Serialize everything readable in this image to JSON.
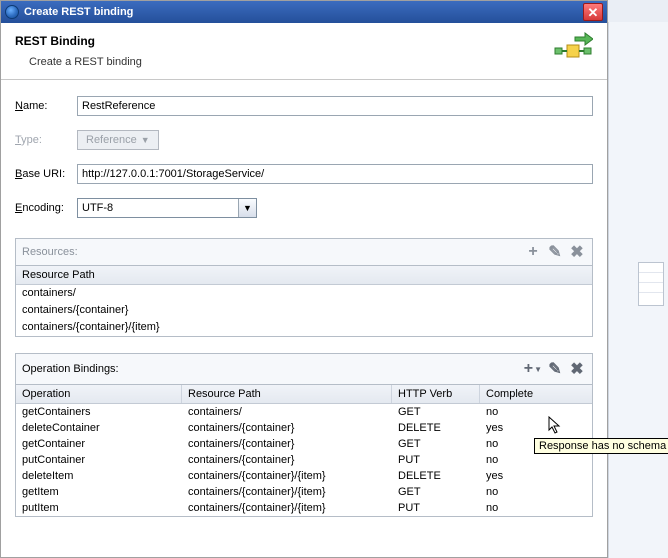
{
  "window": {
    "title": "Create REST binding"
  },
  "header": {
    "title": "REST Binding",
    "subtitle": "Create a REST binding"
  },
  "form": {
    "name": "RestReference",
    "type": "Reference",
    "base_uri": "http://127.0.0.1:7001/StorageService/",
    "encoding": "UTF-8"
  },
  "resources": {
    "label": "Resources:",
    "column": "Resource Path",
    "rows": [
      "containers/",
      "containers/{container}",
      "containers/{container}/{item}"
    ]
  },
  "operations": {
    "label": "Operation Bindings:",
    "columns": [
      "Operation",
      "Resource Path",
      "HTTP Verb",
      "Complete"
    ],
    "rows": [
      {
        "op": "getContainers",
        "rp": "containers/",
        "verb": "GET",
        "complete": "no"
      },
      {
        "op": "deleteContainer",
        "rp": "containers/{container}",
        "verb": "DELETE",
        "complete": "yes"
      },
      {
        "op": "getContainer",
        "rp": "containers/{container}",
        "verb": "GET",
        "complete": "no"
      },
      {
        "op": "putContainer",
        "rp": "containers/{container}",
        "verb": "PUT",
        "complete": "no"
      },
      {
        "op": "deleteItem",
        "rp": "containers/{container}/{item}",
        "verb": "DELETE",
        "complete": "yes"
      },
      {
        "op": "getItem",
        "rp": "containers/{container}/{item}",
        "verb": "GET",
        "complete": "no"
      },
      {
        "op": "putItem",
        "rp": "containers/{container}/{item}",
        "verb": "PUT",
        "complete": "no"
      }
    ]
  },
  "tooltip": {
    "text": "Response has no schema"
  },
  "colors": {
    "titlebar_start": "#3b6cbf",
    "titlebar_end": "#244f9a",
    "panel_border": "#b5bdc7",
    "grid_head_start": "#f0f3f8",
    "grid_head_end": "#e4e9f0",
    "disabled_text": "#9aa0a8",
    "tooltip_bg": "#ffffe1"
  }
}
